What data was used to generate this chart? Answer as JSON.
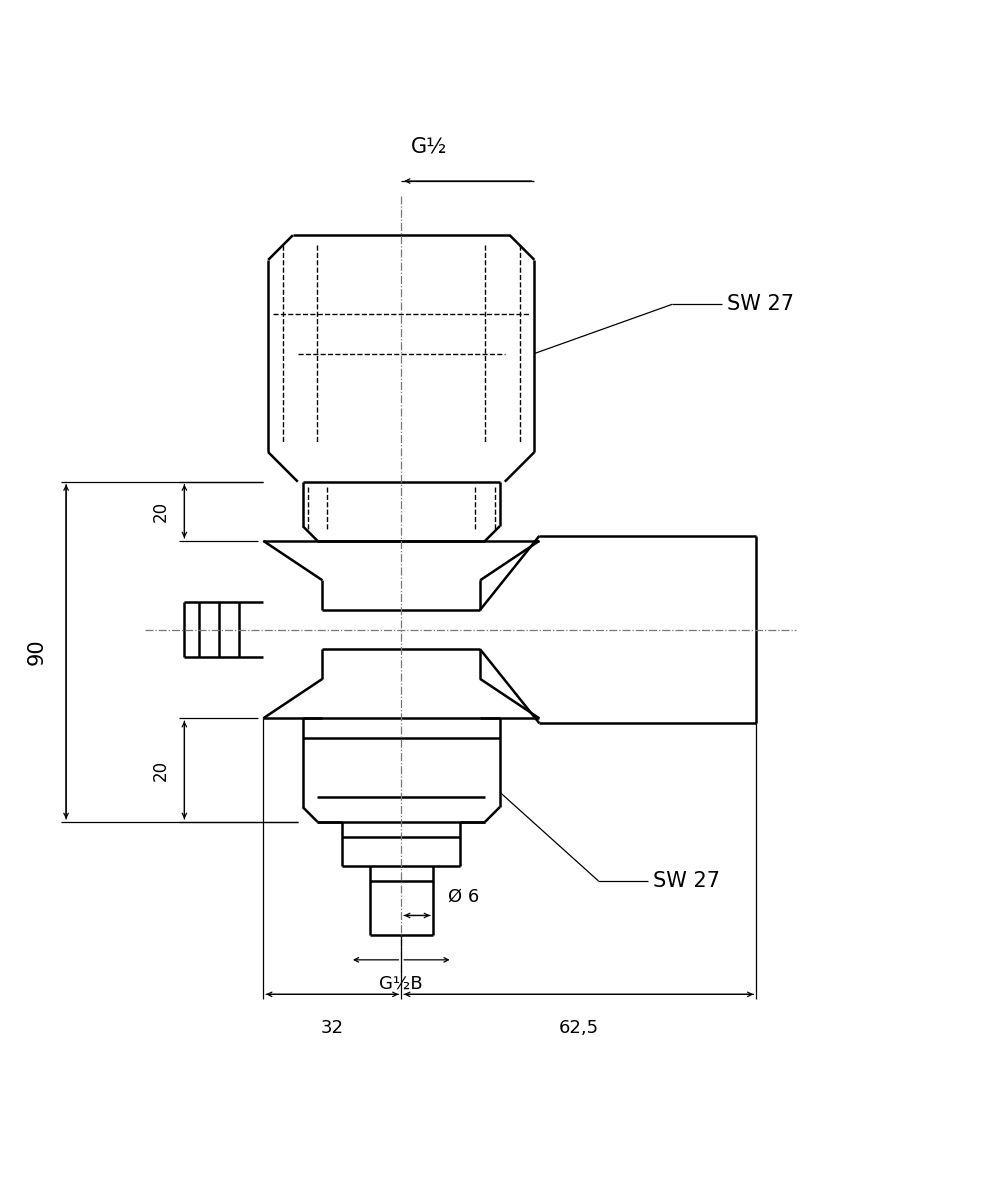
{
  "bg_color": "#ffffff",
  "line_color": "#000000",
  "lw_main": 1.8,
  "lw_thin": 1.0,
  "lw_dim": 0.9,
  "labels": {
    "G_half_top": "G½",
    "SW27_top": "SW 27",
    "SW27_bottom": "SW 27",
    "dim_20_top": "20",
    "dim_20_bottom": "20",
    "dim_90": "90",
    "dim_32": "32",
    "dim_625": "62,5",
    "phi_6": "Ø 6",
    "G_half_B": "G½B"
  }
}
